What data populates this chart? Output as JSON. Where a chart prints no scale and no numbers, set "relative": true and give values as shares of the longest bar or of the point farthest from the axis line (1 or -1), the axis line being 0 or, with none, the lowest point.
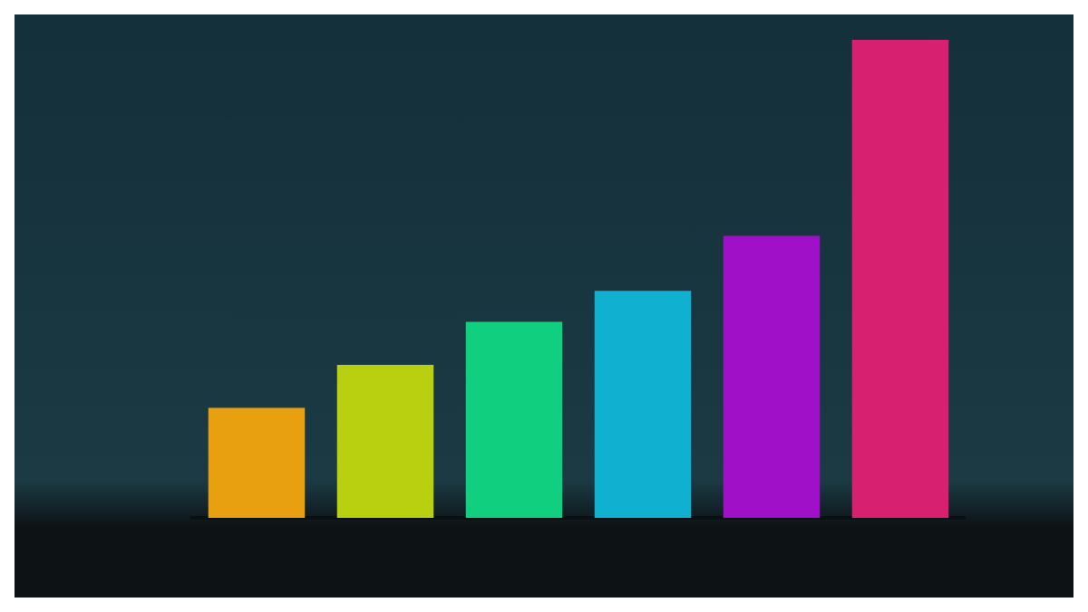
{
  "chart_data": {
    "type": "bar",
    "relative": true,
    "categories": [
      null,
      null,
      null,
      null,
      null,
      null
    ],
    "values": [
      0.23,
      0.32,
      0.41,
      0.475,
      0.59,
      1
    ],
    "colors": [
      "#e8a010",
      "#b8d010",
      "#10d080",
      "#10b0d0",
      "#a010c8",
      "#d82070"
    ]
  }
}
